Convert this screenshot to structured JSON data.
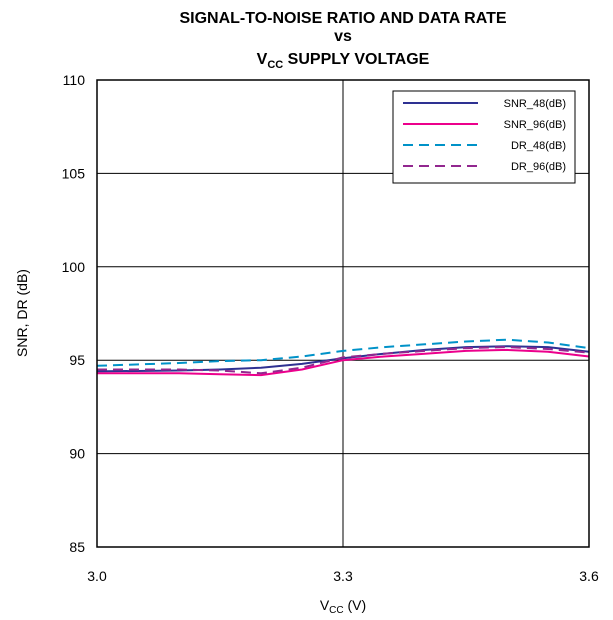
{
  "chart_data": {
    "type": "line",
    "title": {
      "line1": "SIGNAL-TO-NOISE RATIO AND DATA RATE",
      "line2": "vs",
      "line3_main": "V",
      "line3_sub": "CC",
      "line3_rest": " SUPPLY VOLTAGE"
    },
    "xlabel": {
      "main": "V",
      "sub": "CC",
      "rest": " (V)"
    },
    "ylabel": "SNR, DR (dB)",
    "xlim": [
      3.0,
      3.6
    ],
    "ylim": [
      85,
      110
    ],
    "xticks": [
      "3.0",
      "3.3",
      "3.6"
    ],
    "yticks": [
      "85",
      "90",
      "95",
      "100",
      "105",
      "110"
    ],
    "grid": true,
    "legend_position": "top-right",
    "series": [
      {
        "name": "SNR_48(dB)",
        "color": "#2e3192",
        "dash": "solid",
        "x": [
          3.0,
          3.1,
          3.15,
          3.2,
          3.25,
          3.3,
          3.35,
          3.4,
          3.45,
          3.5,
          3.55,
          3.6
        ],
        "y": [
          94.4,
          94.45,
          94.5,
          94.6,
          94.8,
          95.1,
          95.35,
          95.55,
          95.7,
          95.75,
          95.7,
          95.45
        ]
      },
      {
        "name": "SNR_96(dB)",
        "color": "#ec008c",
        "dash": "solid",
        "x": [
          3.0,
          3.1,
          3.15,
          3.2,
          3.25,
          3.3,
          3.35,
          3.4,
          3.45,
          3.5,
          3.55,
          3.6
        ],
        "y": [
          94.3,
          94.3,
          94.25,
          94.2,
          94.5,
          95.0,
          95.2,
          95.35,
          95.5,
          95.55,
          95.45,
          95.2
        ]
      },
      {
        "name": "DR_48(dB)",
        "color": "#0092c8",
        "dash": "dashed",
        "x": [
          3.0,
          3.1,
          3.15,
          3.2,
          3.25,
          3.3,
          3.35,
          3.4,
          3.45,
          3.5,
          3.55,
          3.6
        ],
        "y": [
          94.7,
          94.85,
          94.95,
          95.0,
          95.2,
          95.5,
          95.7,
          95.85,
          96.0,
          96.1,
          95.95,
          95.65
        ]
      },
      {
        "name": "DR_96(dB)",
        "color": "#92278f",
        "dash": "dashed",
        "x": [
          3.0,
          3.1,
          3.15,
          3.2,
          3.25,
          3.3,
          3.35,
          3.4,
          3.45,
          3.5,
          3.55,
          3.6
        ],
        "y": [
          94.5,
          94.5,
          94.45,
          94.3,
          94.6,
          95.15,
          95.35,
          95.5,
          95.65,
          95.7,
          95.6,
          95.4
        ]
      }
    ]
  }
}
